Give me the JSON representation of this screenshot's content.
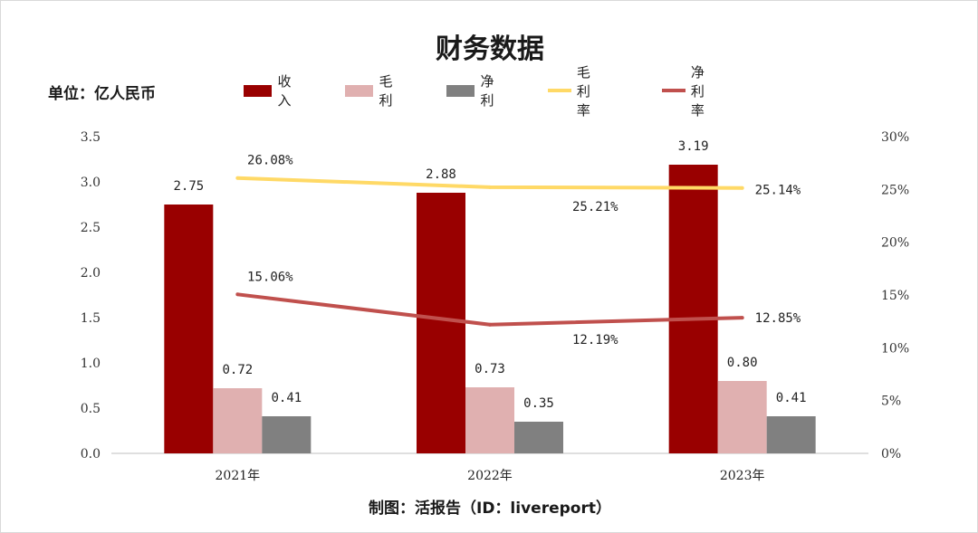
{
  "chart_data": {
    "type": "bar",
    "title": "财务数据",
    "unit_label": "单位：亿人民币",
    "source": "制图：活报告（ID：livereport）",
    "categories": [
      "2021年",
      "2022年",
      "2023年"
    ],
    "series": [
      {
        "name": "收入",
        "type": "bar",
        "axis": "left",
        "color": "#990000",
        "values": [
          2.75,
          2.88,
          3.19
        ],
        "labels": [
          "2.75",
          "2.88",
          "3.19"
        ]
      },
      {
        "name": "毛利",
        "type": "bar",
        "axis": "left",
        "color": "#e0b0b0",
        "values": [
          0.72,
          0.73,
          0.8
        ],
        "labels": [
          "0.72",
          "0.73",
          "0.80"
        ]
      },
      {
        "name": "净利",
        "type": "bar",
        "axis": "left",
        "color": "#808080",
        "values": [
          0.41,
          0.35,
          0.41
        ],
        "labels": [
          "0.41",
          "0.35",
          "0.41"
        ]
      },
      {
        "name": "毛利率",
        "type": "line",
        "axis": "right",
        "color": "#ffd966",
        "values": [
          26.08,
          25.21,
          25.14
        ],
        "labels": [
          "26.08%",
          "25.21%",
          "25.14%"
        ]
      },
      {
        "name": "净利率",
        "type": "line",
        "axis": "right",
        "color": "#c0504d",
        "values": [
          15.06,
          12.19,
          12.85
        ],
        "labels": [
          "15.06%",
          "12.19%",
          "12.85%"
        ]
      }
    ],
    "y_left": {
      "min": 0,
      "max": 3.5,
      "ticks": [
        "0.0",
        "0.5",
        "1.0",
        "1.5",
        "2.0",
        "2.5",
        "3.0",
        "3.5"
      ]
    },
    "y_right": {
      "min": 0,
      "max": 30,
      "ticks": [
        "0%",
        "5%",
        "10%",
        "15%",
        "20%",
        "25%",
        "30%"
      ]
    },
    "grid": false,
    "legend_position": "top"
  }
}
